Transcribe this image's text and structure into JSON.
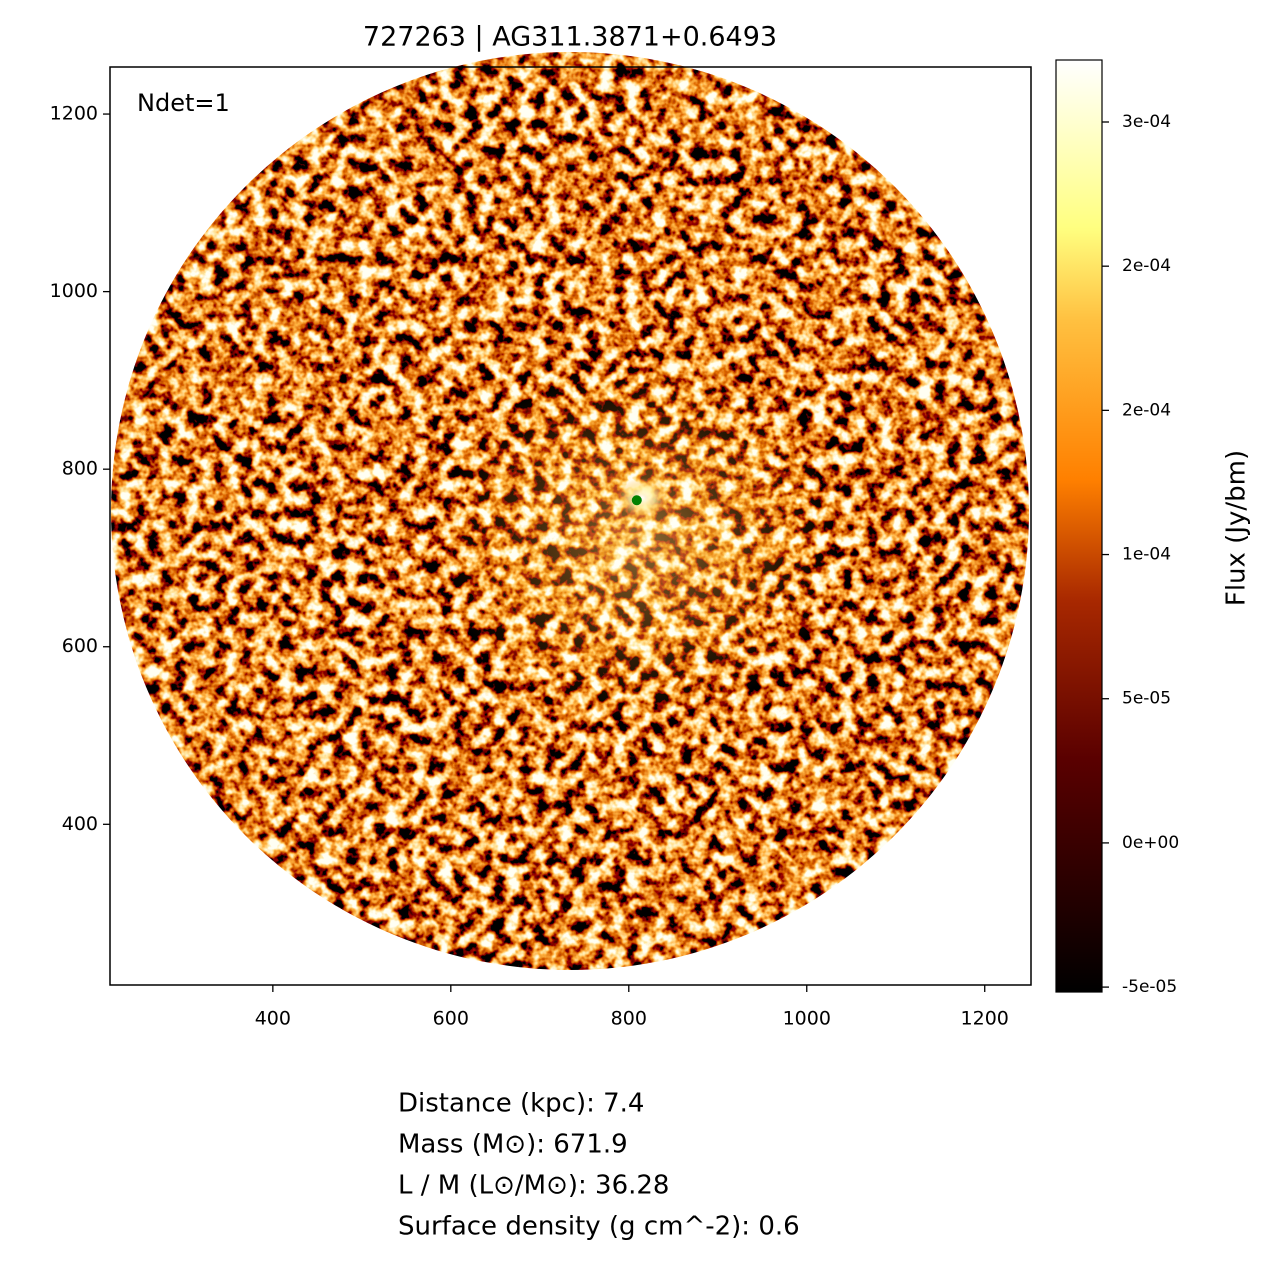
{
  "chart_data": {
    "type": "image",
    "title": "727263 | AG311.3871+0.6493",
    "annotation": "Ndet=1",
    "xlim": [
      217,
      1252
    ],
    "ylim": [
      219,
      1253
    ],
    "xticks": [
      400,
      600,
      800,
      1000,
      1200
    ],
    "yticks": [
      400,
      600,
      800,
      1000,
      1200
    ],
    "source": {
      "x": 809,
      "y": 765,
      "color": "green"
    },
    "colorbar": {
      "label": "Flux (Jy/bm)",
      "clim": [
        -5.17e-05,
        0.0002715
      ],
      "ticks": [
        {
          "value": -5e-05,
          "label": "-5e-05"
        },
        {
          "value": 0,
          "label": "0e+00"
        },
        {
          "value": 5e-05,
          "label": "5e-05"
        },
        {
          "value": 0.0001,
          "label": "1e-04"
        },
        {
          "value": 0.00015,
          "label": "2e-04"
        },
        {
          "value": 0.0002,
          "label": "2e-04"
        },
        {
          "value": 0.00025,
          "label": "3e-04"
        }
      ]
    },
    "info_lines": [
      "Distance (kpc): 7.4",
      "Mass (M⊙): 671.9",
      "L / M (L⊙/M⊙): 36.28",
      "Surface density (g cm^-2): 0.6"
    ]
  }
}
